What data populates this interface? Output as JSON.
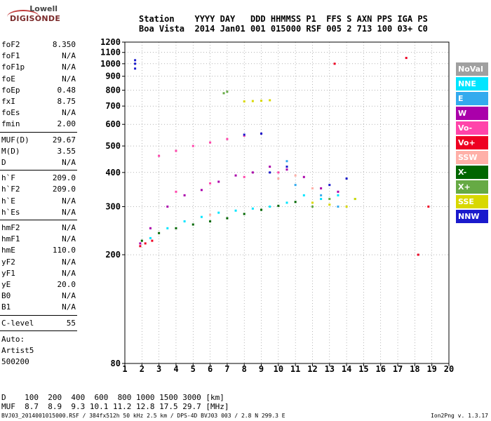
{
  "logo": {
    "line1": "Lowell",
    "line2": "DIGISONDE"
  },
  "header": {
    "row1": "Station    YYYY DAY   DDD HHMMSS P1  FFS S AXN PPS IGA PS",
    "row2": "Boa Vista  2014 Jan01 001 015000 RSF 005 2 713 100 03+ C0"
  },
  "params": {
    "group1": [
      {
        "name": "foF2",
        "value": "8.350"
      },
      {
        "name": "foF1",
        "value": "N/A"
      },
      {
        "name": "foF1p",
        "value": "N/A"
      },
      {
        "name": "foE",
        "value": "N/A"
      },
      {
        "name": "foEp",
        "value": "0.48"
      },
      {
        "name": "fxI",
        "value": "8.75"
      },
      {
        "name": "foEs",
        "value": "N/A"
      },
      {
        "name": "fmin",
        "value": "2.00"
      }
    ],
    "group2": [
      {
        "name": "MUF(D)",
        "value": "29.67"
      },
      {
        "name": "M(D)",
        "value": "3.55"
      },
      {
        "name": "D",
        "value": "N/A"
      }
    ],
    "group3": [
      {
        "name": "h`F",
        "value": "209.0"
      },
      {
        "name": "h`F2",
        "value": "209.0"
      },
      {
        "name": "h`E",
        "value": "N/A"
      },
      {
        "name": "h`Es",
        "value": "N/A"
      }
    ],
    "group4": [
      {
        "name": "hmF2",
        "value": "N/A"
      },
      {
        "name": "hmF1",
        "value": "N/A"
      },
      {
        "name": "hmE",
        "value": "110.0"
      },
      {
        "name": "yF2",
        "value": "N/A"
      },
      {
        "name": "yF1",
        "value": "N/A"
      },
      {
        "name": "yE",
        "value": "20.0"
      },
      {
        "name": "B0",
        "value": "N/A"
      },
      {
        "name": "B1",
        "value": "N/A"
      }
    ],
    "clevel": {
      "name": "C-level",
      "value": "55"
    },
    "auto": [
      "Auto:",
      "Artist5",
      "500200"
    ]
  },
  "footer": {
    "d_row": "D    100  200  400  600  800 1000 1500 3000 [km]",
    "muf_row": "MUF  8.7  8.9  9.3 10.1 11.2 12.8 17.5 29.7 [MHz]",
    "file": "BVJ03_2014001015000.RSF / 384fx512h 50 kHz 2.5 km / DPS-4D BVJ03 003 / 2.8 N 299.3 E",
    "version": "Ion2Png v. 1.3.17"
  },
  "legend": [
    {
      "label": "NoVal",
      "color": "#a0a0a0"
    },
    {
      "label": "NNE",
      "color": "#00e5ff"
    },
    {
      "label": "E",
      "color": "#33aaee"
    },
    {
      "label": "W",
      "color": "#aa00aa"
    },
    {
      "label": "Vo-",
      "color": "#ff44aa"
    },
    {
      "label": "Vo+",
      "color": "#ee0022"
    },
    {
      "label": "SSW",
      "color": "#ffb0a8"
    },
    {
      "label": "X-",
      "color": "#006600"
    },
    {
      "label": "X+",
      "color": "#66aa44"
    },
    {
      "label": "SSE",
      "color": "#d8d800"
    },
    {
      "label": "NNW",
      "color": "#1a1acc"
    }
  ],
  "chart_data": {
    "type": "scatter",
    "xlabel": "",
    "ylabel": "",
    "xlim": [
      1,
      20
    ],
    "ylim": [
      80,
      1200
    ],
    "x_scale": "linear",
    "y_scale": "log",
    "x_ticks": [
      1,
      2,
      3,
      4,
      5,
      6,
      7,
      8,
      9,
      10,
      11,
      12,
      13,
      14,
      15,
      16,
      17,
      18,
      19,
      20
    ],
    "y_ticks": [
      80,
      200,
      300,
      400,
      500,
      600,
      700,
      800,
      900,
      1000,
      1100,
      1200
    ],
    "grid": true,
    "legend_position": "right",
    "series": [
      {
        "name": "W",
        "color": "#aa00aa",
        "points": [
          [
            1.9,
            220
          ],
          [
            2.5,
            250
          ],
          [
            3.5,
            300
          ],
          [
            4.5,
            330
          ],
          [
            5.5,
            345
          ],
          [
            6.5,
            370
          ],
          [
            7.5,
            390
          ],
          [
            8.5,
            400
          ],
          [
            9.5,
            420
          ],
          [
            10.5,
            410
          ],
          [
            11.5,
            385
          ],
          [
            12.5,
            350
          ],
          [
            13.5,
            340
          ]
        ]
      },
      {
        "name": "NNE",
        "color": "#00e5ff",
        "points": [
          [
            2.5,
            230
          ],
          [
            3.5,
            250
          ],
          [
            4.5,
            265
          ],
          [
            5.5,
            275
          ],
          [
            6.5,
            285
          ],
          [
            7.5,
            290
          ],
          [
            8.5,
            295
          ],
          [
            9.5,
            300
          ],
          [
            10.5,
            310
          ],
          [
            11.5,
            330
          ],
          [
            12.5,
            320
          ],
          [
            13.5,
            330
          ],
          [
            14.5,
            320
          ]
        ]
      },
      {
        "name": "X-",
        "color": "#006600",
        "points": [
          [
            2.0,
            225
          ],
          [
            3.0,
            240
          ],
          [
            4.0,
            250
          ],
          [
            5.0,
            258
          ],
          [
            6.0,
            265
          ],
          [
            7.0,
            272
          ],
          [
            8.0,
            282
          ],
          [
            9.0,
            292
          ],
          [
            10.0,
            302
          ],
          [
            11.0,
            312
          ]
        ]
      },
      {
        "name": "Vo-",
        "color": "#ff44aa",
        "points": [
          [
            3.0,
            460
          ],
          [
            4.0,
            480
          ],
          [
            5.0,
            500
          ],
          [
            6.0,
            515
          ],
          [
            7.0,
            530
          ],
          [
            8.0,
            545
          ],
          [
            9.0,
            555
          ],
          [
            4.0,
            340
          ],
          [
            6.0,
            365
          ],
          [
            8.0,
            385
          ],
          [
            10.0,
            400
          ]
        ]
      },
      {
        "name": "SSE",
        "color": "#d8d800",
        "points": [
          [
            8.0,
            728
          ],
          [
            8.5,
            730
          ],
          [
            9.0,
            732
          ],
          [
            9.5,
            735
          ],
          [
            12.0,
            310
          ],
          [
            13.0,
            305
          ],
          [
            14.0,
            300
          ],
          [
            14.5,
            320
          ]
        ]
      },
      {
        "name": "NNW",
        "color": "#1a1acc",
        "points": [
          [
            1.6,
            1000
          ],
          [
            1.6,
            1030
          ],
          [
            1.6,
            960
          ],
          [
            8.0,
            550
          ],
          [
            9.0,
            555
          ],
          [
            9.5,
            400
          ],
          [
            10.5,
            420
          ],
          [
            13.0,
            360
          ],
          [
            14.0,
            380
          ]
        ]
      },
      {
        "name": "Vo+",
        "color": "#ee0022",
        "points": [
          [
            1.9,
            215
          ],
          [
            2.2,
            220
          ],
          [
            2.6,
            225
          ],
          [
            13.3,
            1000
          ],
          [
            17.5,
            1050
          ],
          [
            18.2,
            200
          ],
          [
            18.8,
            300
          ]
        ]
      },
      {
        "name": "X+",
        "color": "#66aa44",
        "points": [
          [
            6.8,
            780
          ],
          [
            7.0,
            790
          ],
          [
            12.0,
            300
          ],
          [
            13.0,
            320
          ]
        ]
      },
      {
        "name": "SSW",
        "color": "#ffb0a8",
        "points": [
          [
            10.0,
            380
          ],
          [
            11.0,
            390
          ],
          [
            12.0,
            350
          ],
          [
            6.0,
            280
          ]
        ]
      },
      {
        "name": "E",
        "color": "#33aaee",
        "points": [
          [
            10.5,
            440
          ],
          [
            11.0,
            360
          ],
          [
            12.5,
            330
          ],
          [
            13.5,
            300
          ]
        ]
      }
    ]
  }
}
